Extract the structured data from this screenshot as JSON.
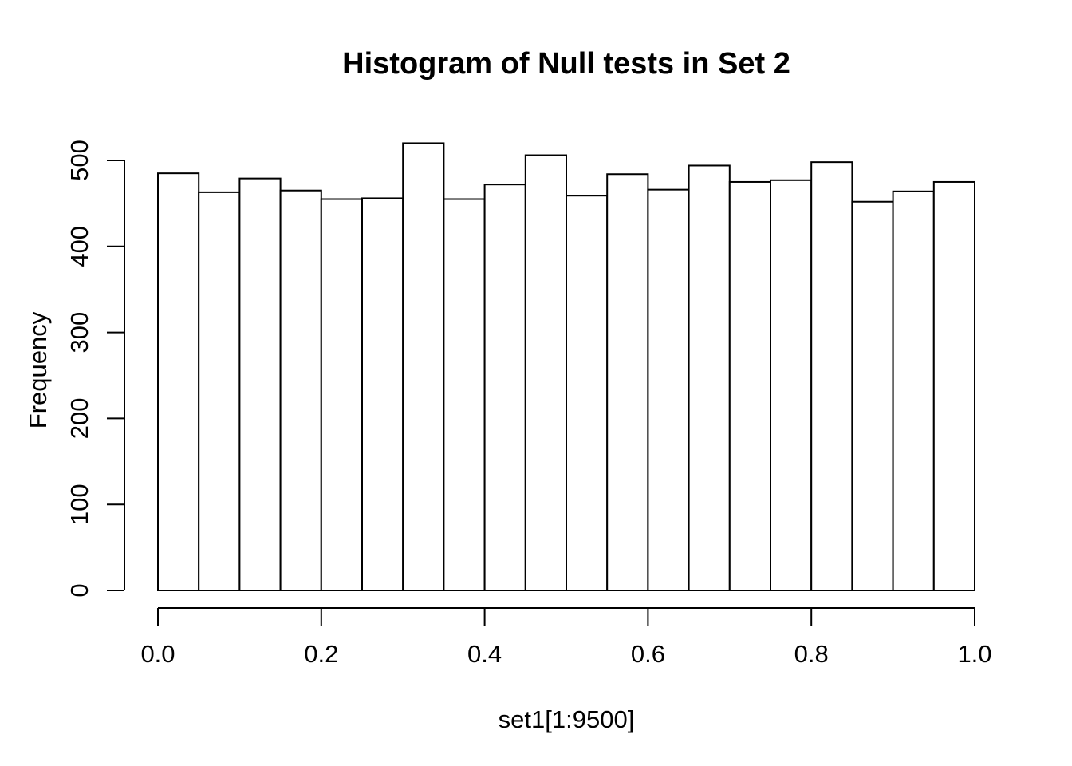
{
  "chart_data": {
    "type": "bar",
    "subtype": "histogram",
    "title": "Histogram of Null tests in Set 2",
    "xlabel": "set1[1:9500]",
    "ylabel": "Frequency",
    "bin_start": 0.0,
    "bin_width": 0.05,
    "bin_edges": [
      0.0,
      0.05,
      0.1,
      0.15,
      0.2,
      0.25,
      0.3,
      0.35,
      0.4,
      0.45,
      0.5,
      0.55,
      0.6,
      0.65,
      0.7,
      0.75,
      0.8,
      0.85,
      0.9,
      0.95,
      1.0
    ],
    "values": [
      485,
      463,
      479,
      465,
      455,
      456,
      520,
      455,
      472,
      506,
      459,
      484,
      466,
      494,
      475,
      477,
      498,
      452,
      464,
      475
    ],
    "total_count": 9500,
    "xlim": [
      0.0,
      1.0
    ],
    "ylim": [
      0,
      500
    ],
    "x_tick_values": [
      0.0,
      0.2,
      0.4,
      0.6,
      0.8,
      1.0
    ],
    "x_tick_labels": [
      "0.0",
      "0.2",
      "0.4",
      "0.6",
      "0.8",
      "1.0"
    ],
    "y_tick_values": [
      0,
      100,
      200,
      300,
      400,
      500
    ],
    "y_tick_labels": [
      "0",
      "100",
      "200",
      "300",
      "400",
      "500"
    ],
    "grid": false,
    "legend": null,
    "colors": {
      "background": "#ffffff",
      "bar_fill": "#ffffff",
      "bar_stroke": "#000000",
      "axis": "#000000",
      "text": "#000000"
    }
  }
}
